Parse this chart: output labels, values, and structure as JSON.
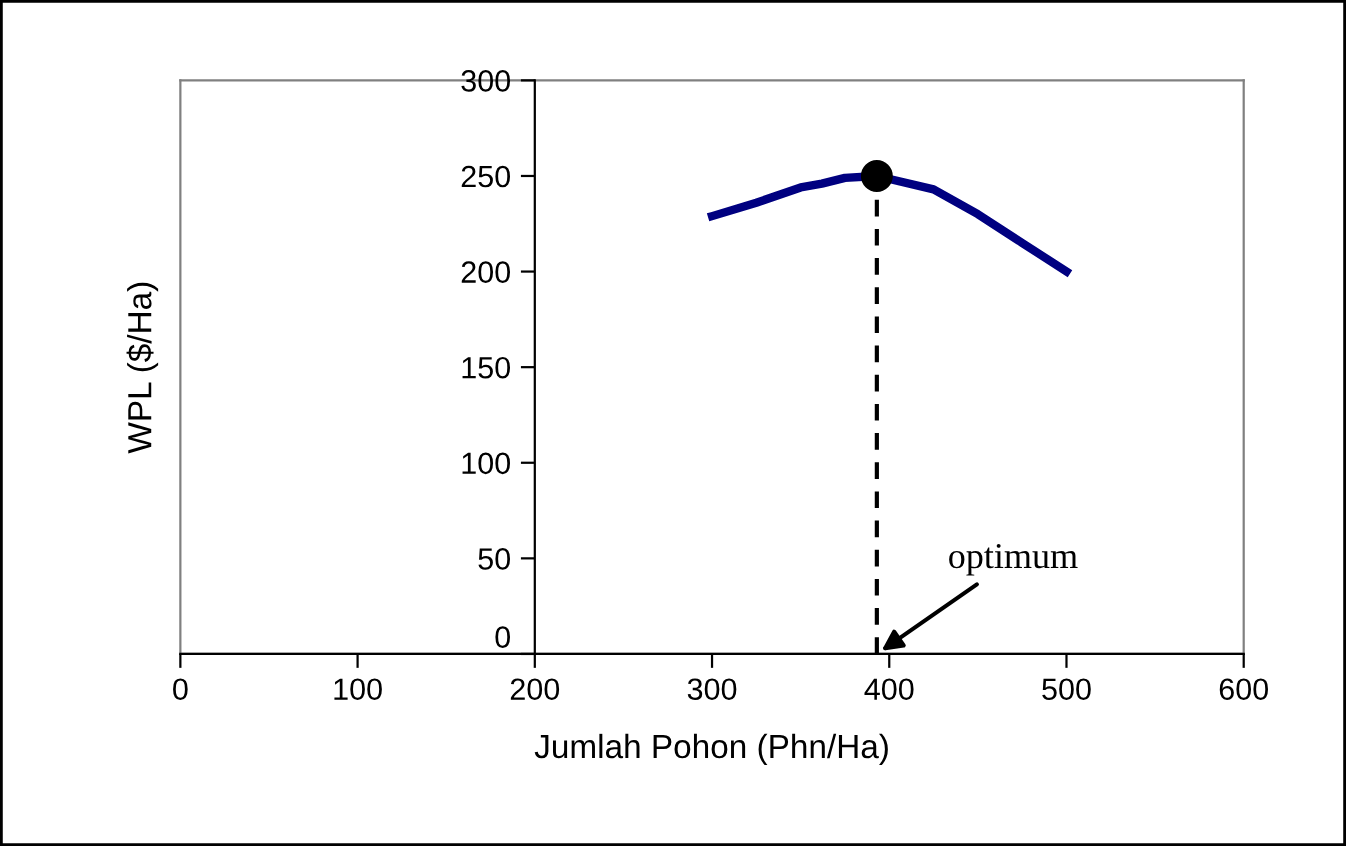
{
  "chart_data": {
    "type": "line",
    "xlabel": "Jumlah Pohon (Phn/Ha)",
    "ylabel": "WPL ($/Ha)",
    "series": [
      {
        "color": "#000080",
        "x": [
          300,
          325,
          350,
          362,
          375,
          393,
          425,
          450,
          475,
          500
        ],
        "values": [
          229,
          236,
          244,
          246,
          249,
          250,
          243,
          230,
          215,
          200
        ]
      },
      {
        "type": "scatter",
        "color": "#000000",
        "marker": "circle",
        "x": [
          393
        ],
        "values": [
          250
        ]
      }
    ],
    "xlim": [
      0,
      600
    ],
    "xticks": [
      0,
      100,
      200,
      300,
      400,
      500,
      600
    ],
    "ylim": [
      0,
      300
    ],
    "yticks": [
      0,
      50,
      100,
      150,
      200,
      250,
      300
    ],
    "ref_lines": [
      {
        "axis": "x",
        "value": 393,
        "color": "#000000",
        "line_style": "dashed"
      }
    ],
    "annotations": [
      {
        "text": "optimum",
        "x": 393,
        "y": 0
      }
    ],
    "grid": false,
    "legend": false
  }
}
